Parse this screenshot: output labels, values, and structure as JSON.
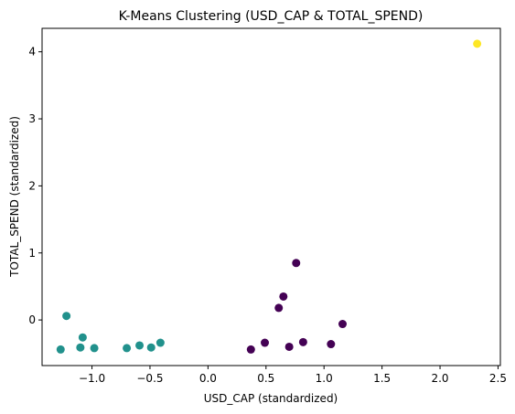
{
  "chart_data": {
    "type": "scatter",
    "title": "K-Means Clustering (USD_CAP & TOTAL_SPEND)",
    "xlabel": "USD_CAP (standardized)",
    "ylabel": "TOTAL_SPEND (standardized)",
    "xlim": [
      -1.43,
      2.52
    ],
    "ylim": [
      -0.68,
      4.35
    ],
    "xticks": [
      -1.0,
      -0.5,
      0.0,
      0.5,
      1.0,
      1.5,
      2.0,
      2.5
    ],
    "xtick_labels": [
      "−1.0",
      "−0.5",
      "0.0",
      "0.5",
      "1.0",
      "1.5",
      "2.0",
      "2.5"
    ],
    "yticks": [
      0,
      1,
      2,
      3,
      4
    ],
    "ytick_labels": [
      "0",
      "1",
      "2",
      "3",
      "4"
    ],
    "grid": false,
    "series": [
      {
        "cluster": 0,
        "color": "#440154",
        "points": [
          [
            0.37,
            -0.44
          ],
          [
            0.49,
            -0.34
          ],
          [
            0.61,
            0.18
          ],
          [
            0.65,
            0.35
          ],
          [
            0.7,
            -0.4
          ],
          [
            0.76,
            0.85
          ],
          [
            0.82,
            -0.33
          ],
          [
            1.06,
            -0.36
          ],
          [
            1.16,
            -0.06
          ]
        ]
      },
      {
        "cluster": 1,
        "color": "#21918c",
        "points": [
          [
            -1.27,
            -0.44
          ],
          [
            -1.22,
            0.06
          ],
          [
            -1.1,
            -0.41
          ],
          [
            -1.08,
            -0.26
          ],
          [
            -0.98,
            -0.42
          ],
          [
            -0.7,
            -0.42
          ],
          [
            -0.59,
            -0.38
          ],
          [
            -0.49,
            -0.41
          ],
          [
            -0.41,
            -0.34
          ]
        ]
      },
      {
        "cluster": 2,
        "color": "#fde725",
        "points": [
          [
            2.32,
            4.12
          ]
        ]
      }
    ]
  }
}
